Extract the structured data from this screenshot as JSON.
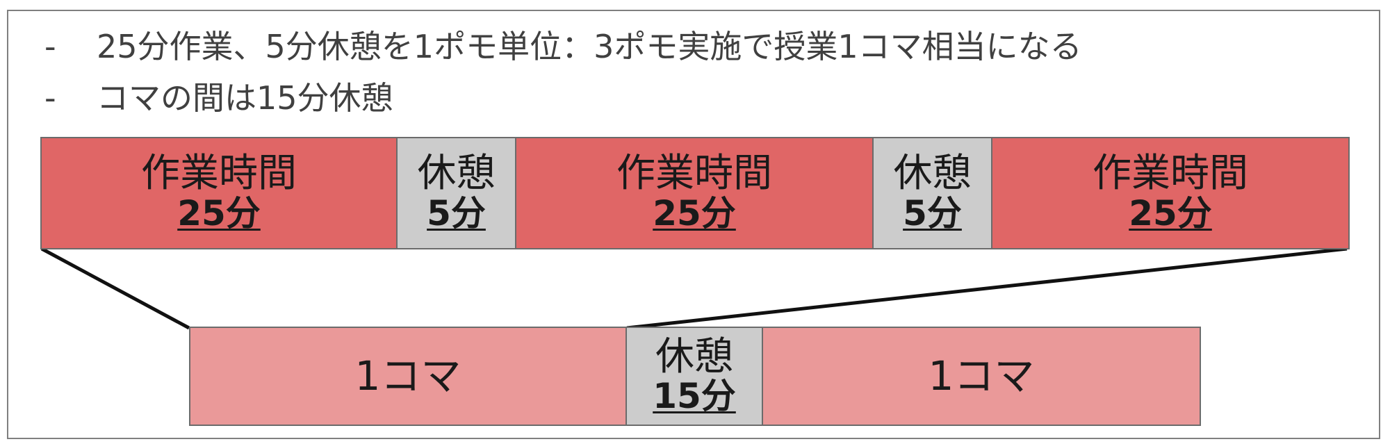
{
  "bullets": [
    {
      "dash": "-",
      "text": "25分作業、5分休憩を1ポモ単位：3ポモ実施で授業1コマ相当になる"
    },
    {
      "dash": "-",
      "text": "コマの間は15分休憩"
    }
  ],
  "top_row": [
    {
      "kind": "work",
      "label": "作業時間",
      "duration": "25分"
    },
    {
      "kind": "rest",
      "label": "休憩",
      "duration": "5分"
    },
    {
      "kind": "work",
      "label": "作業時間",
      "duration": "25分"
    },
    {
      "kind": "rest",
      "label": "休憩",
      "duration": "5分"
    },
    {
      "kind": "work",
      "label": "作業時間",
      "duration": "25分"
    }
  ],
  "bottom_row": [
    {
      "kind": "koma",
      "label": "1コマ"
    },
    {
      "kind": "rest",
      "label": "休憩",
      "duration": "15分"
    },
    {
      "kind": "koma",
      "label": "1コマ"
    }
  ],
  "colors": {
    "work": "#e06666",
    "rest": "#cccccc",
    "koma": "#ea9999",
    "border": "#6b6b6b",
    "connector": "#111111"
  }
}
